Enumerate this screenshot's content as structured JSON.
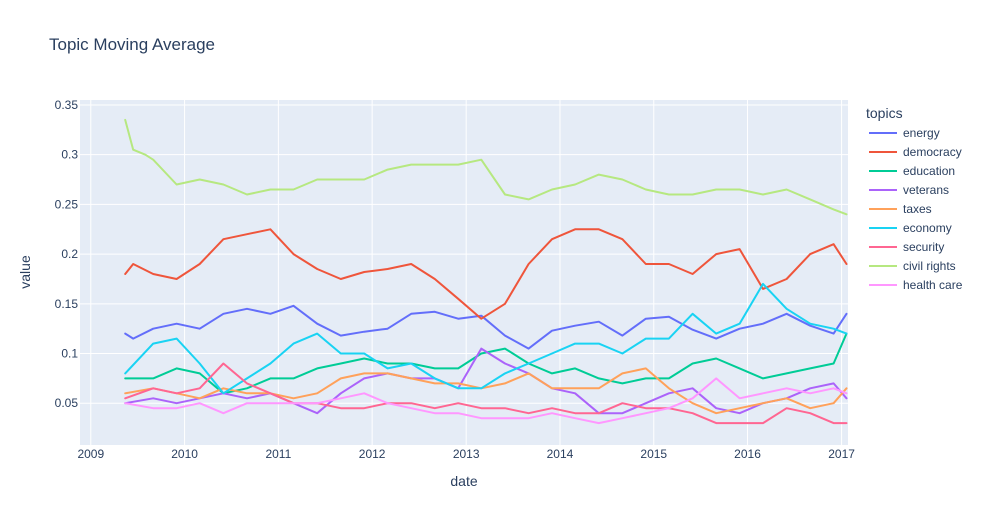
{
  "chart_data": {
    "type": "line",
    "title": "Topic Moving Average",
    "xlabel": "date",
    "ylabel": "value",
    "xlim": [
      "2008-11-20",
      "2017-01-26"
    ],
    "ylim": [
      0.008,
      0.355
    ],
    "x_ticks": [
      "2009",
      "2010",
      "2011",
      "2012",
      "2013",
      "2014",
      "2015",
      "2016",
      "2017"
    ],
    "y_ticks": [
      0.05,
      0.1,
      0.15,
      0.2,
      0.25,
      0.3,
      0.35
    ],
    "y_tick_labels": [
      "0.05",
      "0.1",
      "0.15",
      "0.2",
      "0.25",
      "0.3",
      "0.35"
    ],
    "grid": true,
    "legend": {
      "title": "topics",
      "position": "right"
    },
    "series": [
      {
        "name": "energy",
        "color": "#636efa",
        "x": [
          "2009-05-15",
          "2009-06-15",
          "2009-09-01",
          "2009-12-01",
          "2010-03-01",
          "2010-06-01",
          "2010-09-01",
          "2010-12-01",
          "2011-03-01",
          "2011-06-01",
          "2011-09-01",
          "2011-12-01",
          "2012-03-01",
          "2012-06-01",
          "2012-09-01",
          "2012-12-01",
          "2013-03-01",
          "2013-06-01",
          "2013-09-01",
          "2013-12-01",
          "2014-03-01",
          "2014-06-01",
          "2014-09-01",
          "2014-12-01",
          "2015-03-01",
          "2015-06-01",
          "2015-09-01",
          "2015-12-01",
          "2016-03-01",
          "2016-06-01",
          "2016-09-01",
          "2016-12-01",
          "2017-01-20"
        ],
        "y": [
          0.12,
          0.115,
          0.125,
          0.13,
          0.125,
          0.14,
          0.145,
          0.14,
          0.148,
          0.13,
          0.118,
          0.122,
          0.125,
          0.14,
          0.142,
          0.135,
          0.138,
          0.118,
          0.105,
          0.123,
          0.128,
          0.132,
          0.118,
          0.135,
          0.137,
          0.124,
          0.115,
          0.125,
          0.13,
          0.14,
          0.128,
          0.12,
          0.14
        ]
      },
      {
        "name": "democracy",
        "color": "#ef553b",
        "x": [
          "2009-05-15",
          "2009-06-15",
          "2009-09-01",
          "2009-12-01",
          "2010-03-01",
          "2010-06-01",
          "2010-09-01",
          "2010-12-01",
          "2011-03-01",
          "2011-06-01",
          "2011-09-01",
          "2011-12-01",
          "2012-03-01",
          "2012-06-01",
          "2012-09-01",
          "2012-12-01",
          "2013-03-01",
          "2013-06-01",
          "2013-09-01",
          "2013-12-01",
          "2014-03-01",
          "2014-06-01",
          "2014-09-01",
          "2014-12-01",
          "2015-03-01",
          "2015-06-01",
          "2015-09-01",
          "2015-12-01",
          "2016-03-01",
          "2016-06-01",
          "2016-09-01",
          "2016-12-01",
          "2017-01-20"
        ],
        "y": [
          0.18,
          0.19,
          0.18,
          0.175,
          0.19,
          0.215,
          0.22,
          0.225,
          0.2,
          0.185,
          0.175,
          0.182,
          0.185,
          0.19,
          0.175,
          0.155,
          0.135,
          0.15,
          0.19,
          0.215,
          0.225,
          0.225,
          0.215,
          0.19,
          0.19,
          0.18,
          0.2,
          0.205,
          0.165,
          0.175,
          0.2,
          0.21,
          0.19
        ]
      },
      {
        "name": "education",
        "color": "#00cc96",
        "x": [
          "2009-05-15",
          "2009-09-01",
          "2009-12-01",
          "2010-03-01",
          "2010-06-01",
          "2010-09-01",
          "2010-12-01",
          "2011-03-01",
          "2011-06-01",
          "2011-09-01",
          "2011-12-01",
          "2012-03-01",
          "2012-06-01",
          "2012-09-01",
          "2012-12-01",
          "2013-03-01",
          "2013-06-01",
          "2013-09-01",
          "2013-12-01",
          "2014-03-01",
          "2014-06-01",
          "2014-09-01",
          "2014-12-01",
          "2015-03-01",
          "2015-06-01",
          "2015-09-01",
          "2015-12-01",
          "2016-03-01",
          "2016-06-01",
          "2016-09-01",
          "2016-12-01",
          "2017-01-20"
        ],
        "y": [
          0.075,
          0.075,
          0.085,
          0.08,
          0.06,
          0.065,
          0.075,
          0.075,
          0.085,
          0.09,
          0.095,
          0.09,
          0.09,
          0.085,
          0.085,
          0.1,
          0.105,
          0.09,
          0.08,
          0.085,
          0.075,
          0.07,
          0.075,
          0.075,
          0.09,
          0.095,
          0.085,
          0.075,
          0.08,
          0.085,
          0.09,
          0.12
        ]
      },
      {
        "name": "veterans",
        "color": "#ab63fa",
        "x": [
          "2009-05-15",
          "2009-09-01",
          "2009-12-01",
          "2010-03-01",
          "2010-06-01",
          "2010-09-01",
          "2010-12-01",
          "2011-03-01",
          "2011-06-01",
          "2011-09-01",
          "2011-12-01",
          "2012-03-01",
          "2012-06-01",
          "2012-09-01",
          "2012-12-01",
          "2013-03-01",
          "2013-06-01",
          "2013-09-01",
          "2013-12-01",
          "2014-03-01",
          "2014-06-01",
          "2014-09-01",
          "2014-12-01",
          "2015-03-01",
          "2015-06-01",
          "2015-09-01",
          "2015-12-01",
          "2016-03-01",
          "2016-06-01",
          "2016-09-01",
          "2016-12-01",
          "2017-01-20"
        ],
        "y": [
          0.05,
          0.055,
          0.05,
          0.055,
          0.06,
          0.055,
          0.06,
          0.05,
          0.04,
          0.06,
          0.075,
          0.08,
          0.075,
          0.075,
          0.065,
          0.105,
          0.09,
          0.08,
          0.065,
          0.06,
          0.04,
          0.04,
          0.05,
          0.06,
          0.065,
          0.045,
          0.04,
          0.05,
          0.055,
          0.065,
          0.07,
          0.055
        ]
      },
      {
        "name": "taxes",
        "color": "#ffa15a",
        "x": [
          "2009-05-15",
          "2009-09-01",
          "2009-12-01",
          "2010-03-01",
          "2010-06-01",
          "2010-09-01",
          "2010-12-01",
          "2011-03-01",
          "2011-06-01",
          "2011-09-01",
          "2011-12-01",
          "2012-03-01",
          "2012-06-01",
          "2012-09-01",
          "2012-12-01",
          "2013-03-01",
          "2013-06-01",
          "2013-09-01",
          "2013-12-01",
          "2014-03-01",
          "2014-06-01",
          "2014-09-01",
          "2014-12-01",
          "2015-03-01",
          "2015-06-01",
          "2015-09-01",
          "2015-12-01",
          "2016-03-01",
          "2016-06-01",
          "2016-09-01",
          "2016-12-01",
          "2017-01-20"
        ],
        "y": [
          0.06,
          0.065,
          0.06,
          0.055,
          0.065,
          0.06,
          0.06,
          0.055,
          0.06,
          0.075,
          0.08,
          0.08,
          0.075,
          0.07,
          0.07,
          0.065,
          0.07,
          0.08,
          0.065,
          0.065,
          0.065,
          0.08,
          0.085,
          0.065,
          0.05,
          0.04,
          0.045,
          0.05,
          0.055,
          0.045,
          0.05,
          0.065
        ]
      },
      {
        "name": "economy",
        "color": "#19d3f3",
        "x": [
          "2009-05-15",
          "2009-09-01",
          "2009-12-01",
          "2010-03-01",
          "2010-06-01",
          "2010-09-01",
          "2010-12-01",
          "2011-03-01",
          "2011-06-01",
          "2011-09-01",
          "2011-12-01",
          "2012-03-01",
          "2012-06-01",
          "2012-09-01",
          "2012-12-01",
          "2013-03-01",
          "2013-06-01",
          "2013-09-01",
          "2013-12-01",
          "2014-03-01",
          "2014-06-01",
          "2014-09-01",
          "2014-12-01",
          "2015-03-01",
          "2015-06-01",
          "2015-09-01",
          "2015-12-01",
          "2016-03-01",
          "2016-06-01",
          "2016-09-01",
          "2016-12-01",
          "2017-01-20"
        ],
        "y": [
          0.08,
          0.11,
          0.115,
          0.09,
          0.06,
          0.075,
          0.09,
          0.11,
          0.12,
          0.1,
          0.1,
          0.085,
          0.09,
          0.075,
          0.065,
          0.065,
          0.08,
          0.09,
          0.1,
          0.11,
          0.11,
          0.1,
          0.115,
          0.115,
          0.14,
          0.12,
          0.13,
          0.17,
          0.145,
          0.13,
          0.125,
          0.12
        ]
      },
      {
        "name": "security",
        "color": "#ff6692",
        "x": [
          "2009-05-15",
          "2009-09-01",
          "2009-12-01",
          "2010-03-01",
          "2010-06-01",
          "2010-09-01",
          "2010-12-01",
          "2011-03-01",
          "2011-06-01",
          "2011-09-01",
          "2011-12-01",
          "2012-03-01",
          "2012-06-01",
          "2012-09-01",
          "2012-12-01",
          "2013-03-01",
          "2013-06-01",
          "2013-09-01",
          "2013-12-01",
          "2014-03-01",
          "2014-06-01",
          "2014-09-01",
          "2014-12-01",
          "2015-03-01",
          "2015-06-01",
          "2015-09-01",
          "2015-12-01",
          "2016-03-01",
          "2016-06-01",
          "2016-09-01",
          "2016-12-01",
          "2017-01-20"
        ],
        "y": [
          0.055,
          0.065,
          0.06,
          0.065,
          0.09,
          0.07,
          0.06,
          0.05,
          0.05,
          0.045,
          0.045,
          0.05,
          0.05,
          0.045,
          0.05,
          0.045,
          0.045,
          0.04,
          0.045,
          0.04,
          0.04,
          0.05,
          0.045,
          0.045,
          0.04,
          0.03,
          0.03,
          0.03,
          0.045,
          0.04,
          0.03,
          0.03
        ]
      },
      {
        "name": "civil rights",
        "color": "#b6e880",
        "x": [
          "2009-05-15",
          "2009-06-15",
          "2009-08-01",
          "2009-09-01",
          "2009-12-01",
          "2010-03-01",
          "2010-06-01",
          "2010-09-01",
          "2010-12-01",
          "2011-03-01",
          "2011-06-01",
          "2011-09-01",
          "2011-12-01",
          "2012-03-01",
          "2012-06-01",
          "2012-09-01",
          "2012-12-01",
          "2013-03-01",
          "2013-06-01",
          "2013-09-01",
          "2013-12-01",
          "2014-03-01",
          "2014-06-01",
          "2014-09-01",
          "2014-12-01",
          "2015-03-01",
          "2015-06-01",
          "2015-09-01",
          "2015-12-01",
          "2016-03-01",
          "2016-06-01",
          "2016-09-01",
          "2016-12-01",
          "2017-01-20"
        ],
        "y": [
          0.335,
          0.305,
          0.3,
          0.295,
          0.27,
          0.275,
          0.27,
          0.26,
          0.265,
          0.265,
          0.275,
          0.275,
          0.275,
          0.285,
          0.29,
          0.29,
          0.29,
          0.295,
          0.26,
          0.255,
          0.265,
          0.27,
          0.28,
          0.275,
          0.265,
          0.26,
          0.26,
          0.265,
          0.265,
          0.26,
          0.265,
          0.255,
          0.245,
          0.24
        ]
      },
      {
        "name": "health care",
        "color": "#ff97ff",
        "x": [
          "2009-05-15",
          "2009-09-01",
          "2009-12-01",
          "2010-03-01",
          "2010-06-01",
          "2010-09-01",
          "2010-12-01",
          "2011-03-01",
          "2011-06-01",
          "2011-09-01",
          "2011-12-01",
          "2012-03-01",
          "2012-06-01",
          "2012-09-01",
          "2012-12-01",
          "2013-03-01",
          "2013-06-01",
          "2013-09-01",
          "2013-12-01",
          "2014-03-01",
          "2014-06-01",
          "2014-09-01",
          "2014-12-01",
          "2015-03-01",
          "2015-06-01",
          "2015-09-01",
          "2015-12-01",
          "2016-03-01",
          "2016-06-01",
          "2016-09-01",
          "2016-12-01",
          "2017-01-20"
        ],
        "y": [
          0.05,
          0.045,
          0.045,
          0.05,
          0.04,
          0.05,
          0.05,
          0.05,
          0.05,
          0.055,
          0.06,
          0.05,
          0.045,
          0.04,
          0.04,
          0.035,
          0.035,
          0.035,
          0.04,
          0.035,
          0.03,
          0.035,
          0.04,
          0.045,
          0.055,
          0.075,
          0.055,
          0.06,
          0.065,
          0.06,
          0.065,
          0.06
        ]
      }
    ]
  }
}
